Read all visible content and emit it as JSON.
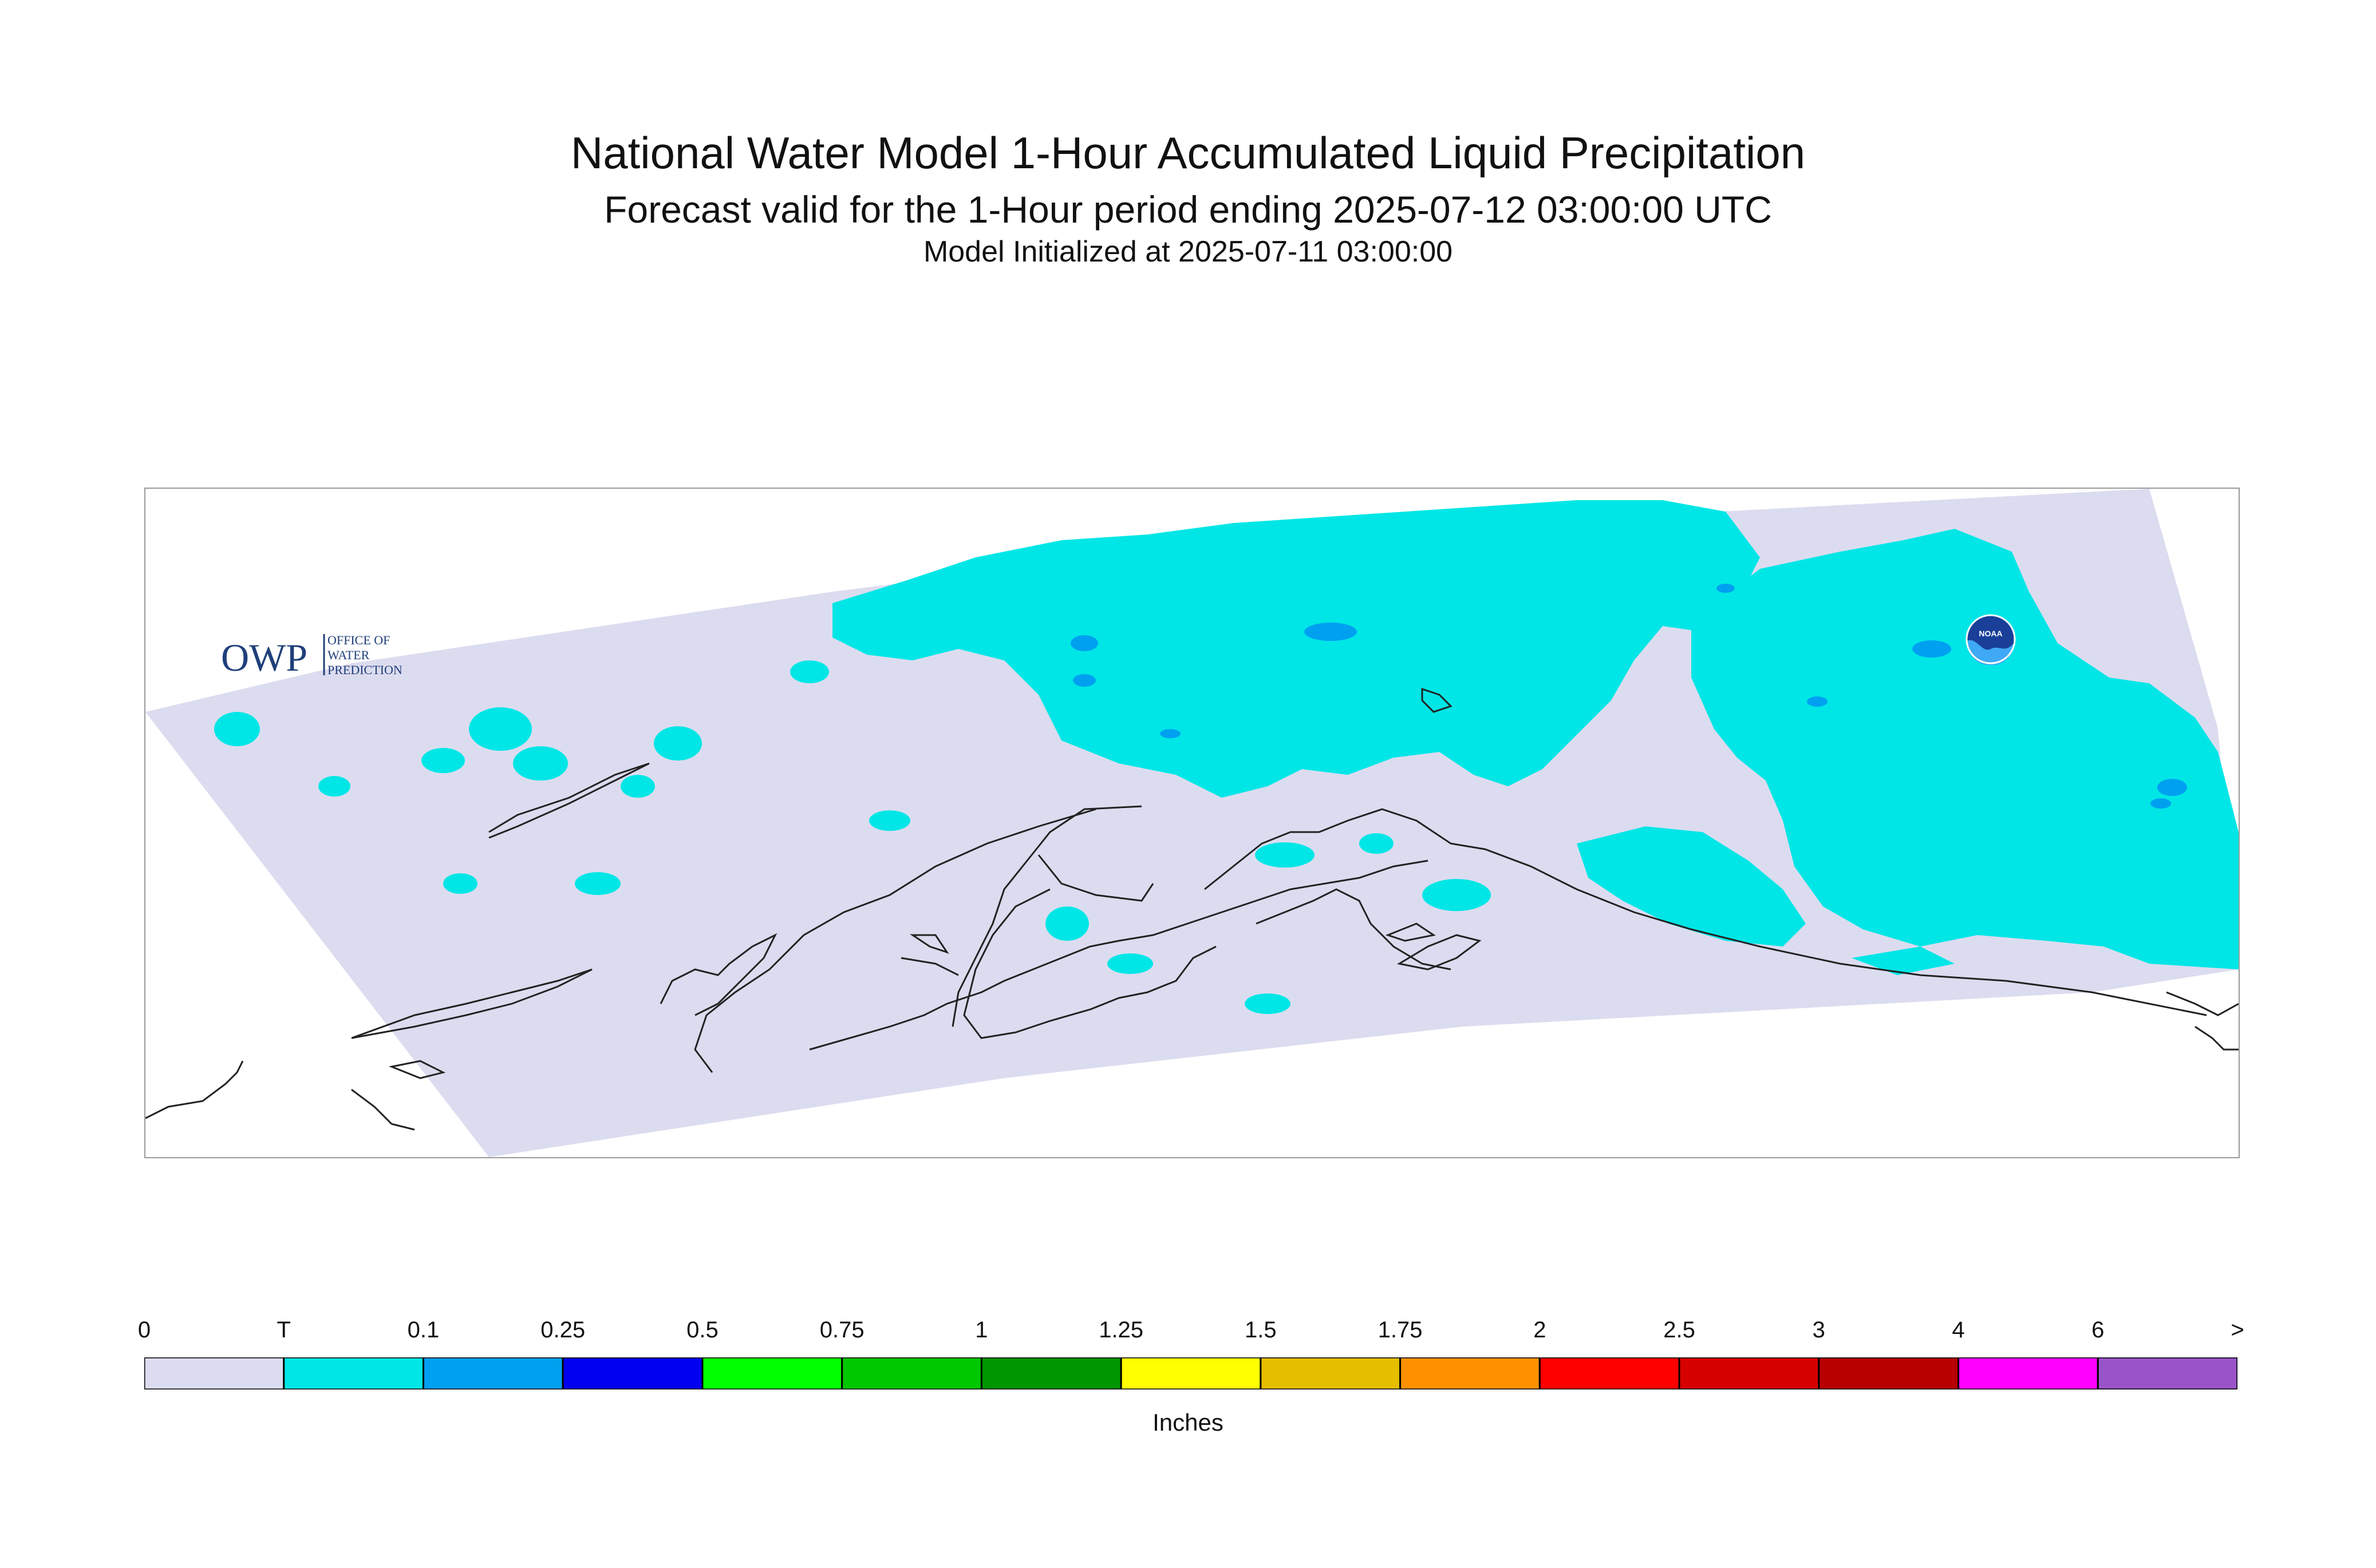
{
  "title": "National Water Model 1-Hour Accumulated Liquid Precipitation",
  "subtitle": "Forecast valid for the 1-Hour period ending 2025-07-12 03:00:00 UTC",
  "initialized": "Model Initialized at 2025-07-11 03:00:00",
  "logos": {
    "owp_mark": "OWP",
    "owp_text_lines": [
      "OFFICE OF",
      "WATER",
      "PREDICTION"
    ],
    "noaa_text": "NOAA"
  },
  "legend": {
    "units": "Inches",
    "labels": [
      "0",
      "T",
      "0.1",
      "0.25",
      "0.5",
      "0.75",
      "1",
      "1.25",
      "1.5",
      "1.75",
      "2",
      "2.5",
      "3",
      "4",
      "6",
      ">"
    ],
    "colors": [
      "#dcdcf0",
      "#00e6e6",
      "#00a0f0",
      "#0000f0",
      "#00ff00",
      "#00c800",
      "#009600",
      "#ffff00",
      "#e6be00",
      "#ff9100",
      "#ff0000",
      "#d70000",
      "#b80000",
      "#ff00ff",
      "#9955c8"
    ]
  },
  "map": {
    "domain_fill": "#dcdcf0",
    "precip_trace_color": "#00e6e6",
    "precip_light_color": "#00a0f0",
    "coastline_color": "#222222"
  }
}
